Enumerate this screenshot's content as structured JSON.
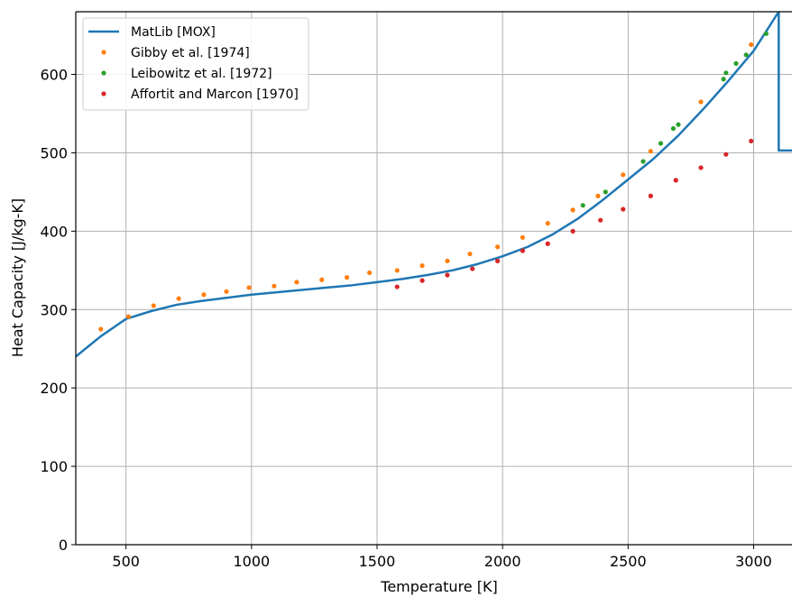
{
  "chart_data": {
    "type": "scatter",
    "title": "",
    "xlabel": "Temperature [K]",
    "ylabel": "Heat Capacity [J/kg-K]",
    "xlim": [
      300,
      3160
    ],
    "ylim": [
      0,
      680
    ],
    "xticks": [
      500,
      1000,
      1500,
      2000,
      2500,
      3000
    ],
    "yticks": [
      0,
      100,
      200,
      300,
      400,
      500,
      600
    ],
    "grid": true,
    "legend_position": "top-left",
    "series": [
      {
        "name": "MatLib [MOX]",
        "kind": "line",
        "color": "#1f77b4",
        "x": [
          300,
          400,
          500,
          600,
          700,
          800,
          900,
          1000,
          1100,
          1200,
          1300,
          1400,
          1500,
          1600,
          1700,
          1800,
          1900,
          2000,
          2100,
          2200,
          2300,
          2400,
          2500,
          2600,
          2700,
          2800,
          2900,
          3000,
          3100,
          3100,
          3160
        ],
        "y": [
          240,
          266,
          288,
          298,
          306,
          311,
          315,
          319,
          322,
          325,
          328,
          331,
          335,
          339,
          344,
          350,
          358,
          368,
          380,
          396,
          416,
          440,
          466,
          492,
          522,
          556,
          592,
          630,
          680,
          503,
          503
        ]
      },
      {
        "name": "Gibby et al. [1974]",
        "kind": "scatter",
        "color": "#ff7f0e",
        "x": [
          400,
          510,
          610,
          710,
          810,
          900,
          990,
          1090,
          1180,
          1280,
          1380,
          1470,
          1580,
          1680,
          1780,
          1870,
          1980,
          2080,
          2180,
          2280,
          2380,
          2480,
          2590,
          2790,
          2990
        ],
        "y": [
          275,
          291,
          305,
          314,
          319,
          323,
          328,
          330,
          335,
          338,
          341,
          347,
          350,
          356,
          362,
          371,
          380,
          392,
          410,
          427,
          445,
          472,
          502,
          565,
          638
        ]
      },
      {
        "name": "Leibowitz et al. [1972]",
        "kind": "scatter",
        "color": "#2ca02c",
        "x": [
          2320,
          2410,
          2560,
          2630,
          2680,
          2700,
          2880,
          2890,
          2930,
          2970,
          3050
        ],
        "y": [
          433,
          450,
          489,
          512,
          531,
          536,
          594,
          602,
          614,
          625,
          652
        ]
      },
      {
        "name": "Affortit and Marcon [1970]",
        "kind": "scatter",
        "color": "#d62728",
        "x": [
          1580,
          1680,
          1780,
          1880,
          1980,
          2080,
          2180,
          2280,
          2390,
          2480,
          2590,
          2690,
          2790,
          2890,
          2990
        ],
        "y": [
          329,
          337,
          344,
          352,
          362,
          375,
          384,
          400,
          414,
          428,
          445,
          465,
          481,
          498,
          515
        ]
      }
    ]
  }
}
